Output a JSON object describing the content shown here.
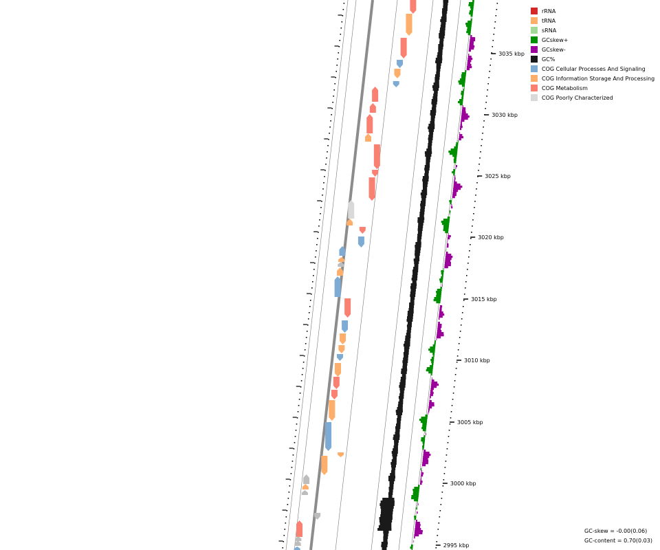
{
  "legend": [
    {
      "label": "rRNA",
      "color": "#d62728"
    },
    {
      "label": "tRNA",
      "color": "#fdae6b"
    },
    {
      "label": "sRNA",
      "color": "#a1d99b"
    },
    {
      "label": "GCskew+",
      "color": "#008f00"
    },
    {
      "label": "GCskew-",
      "color": "#9b009b"
    },
    {
      "label": "GC%",
      "color": "#1a1a1a"
    },
    {
      "label": "COG Cellular Processes And Signaling",
      "color": "#7eabd4"
    },
    {
      "label": "COG Information Storage And Processing",
      "color": "#fdae6b"
    },
    {
      "label": "COG Metabolism",
      "color": "#fa8072"
    },
    {
      "label": "COG Poorly Characterized",
      "color": "#d9d9d9"
    }
  ],
  "ticks": [
    "3035 kbp",
    "3030 kbp",
    "3025 kbp",
    "3020 kbp",
    "3015 kbp",
    "3010 kbp",
    "3005 kbp",
    "3000 kbp",
    "2995 kbp"
  ],
  "stats": {
    "gc_skew": "GC-skew = -0.00(0.06)",
    "gc_content": "GC-content = 0.70(0.03)"
  }
}
